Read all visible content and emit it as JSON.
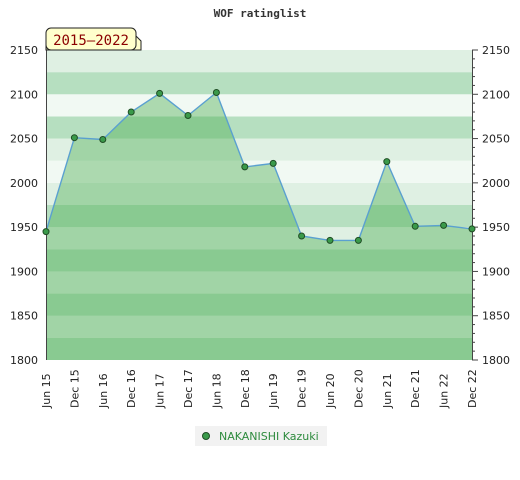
{
  "chart_data": {
    "type": "area",
    "title": "WOF ratinglist",
    "period_badge": "2015–2022",
    "xlabel": "",
    "ylabel": "",
    "ylim": [
      1800,
      2150
    ],
    "y_ticks": [
      1800,
      1850,
      1900,
      1950,
      2000,
      2050,
      2100,
      2150
    ],
    "y_tick_labels": [
      "1800",
      "1850",
      "1900",
      "1950",
      "2000",
      "2050",
      "2100",
      "2150"
    ],
    "categories": [
      "Jun 15",
      "Dec 15",
      "Jun 16",
      "Dec 16",
      "Jun 17",
      "Dec 17",
      "Jun 18",
      "Dec 18",
      "Jun 19",
      "Dec 19",
      "Jun 20",
      "Dec 20",
      "Jun 21",
      "Dec 21",
      "Jun 22",
      "Dec 22"
    ],
    "series": [
      {
        "name": "NAKANISHI Kazuki",
        "values": [
          1945,
          2051,
          2049,
          2080,
          2101,
          2076,
          2102,
          2018,
          2022,
          1940,
          1935,
          1935,
          2024,
          1951,
          1952,
          1948
        ]
      }
    ],
    "legend_position": "bottom-center",
    "grid": "alternating-bands",
    "colors": {
      "line": "#5aa0d0",
      "fill": "#4caf50",
      "marker": "#3a9a4a",
      "marker_stroke": "#1f4d24",
      "band_dark": "#b6dfc0",
      "band_light": "#dff0e3",
      "band_lightest": "#f1f9f3",
      "badge_bg": "#ffffcc",
      "badge_text": "#8b0000"
    }
  }
}
